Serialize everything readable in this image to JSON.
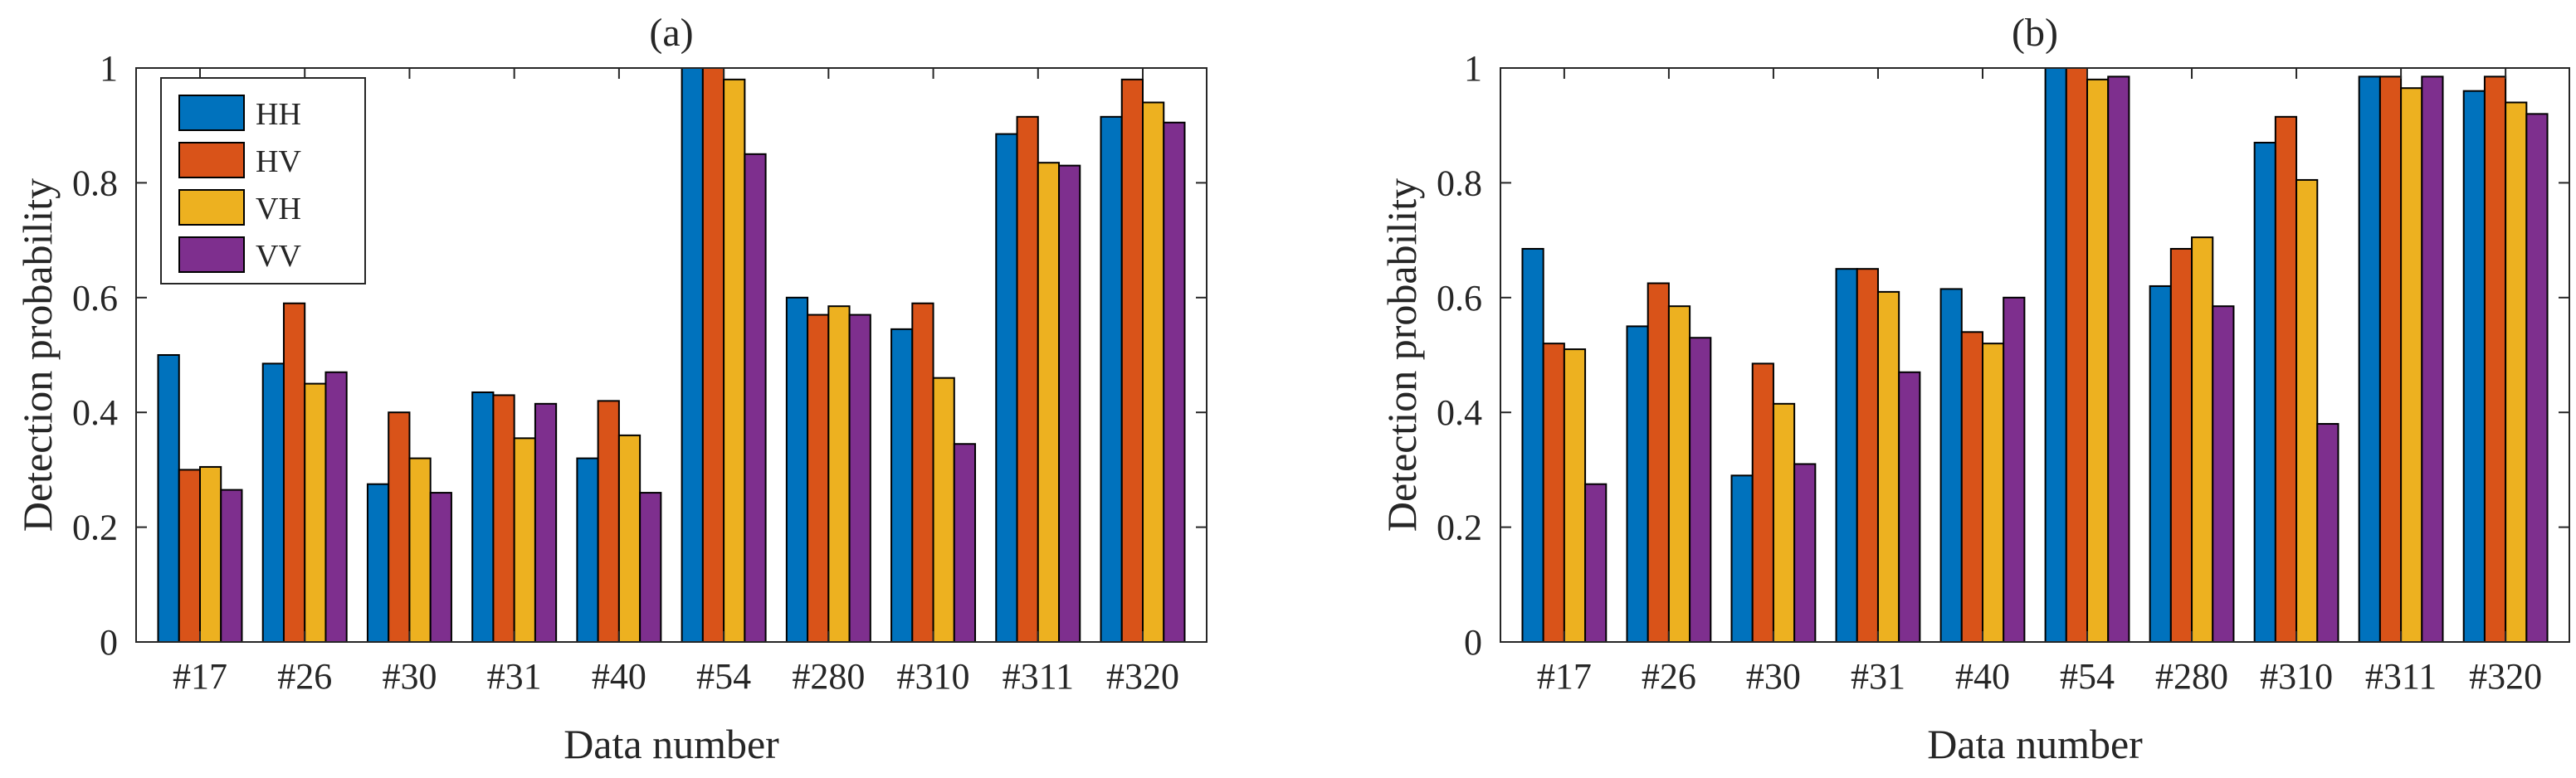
{
  "chart_data": [
    {
      "type": "bar",
      "title": "(a)",
      "xlabel": "Data number",
      "ylabel": "Detection probability",
      "ylim": [
        0,
        1
      ],
      "yticks": [
        0,
        0.2,
        0.4,
        0.6,
        0.8,
        1
      ],
      "ytick_labels": [
        "0",
        "0.2",
        "0.4",
        "0.6",
        "0.8",
        "1"
      ],
      "categories": [
        "#17",
        "#26",
        "#30",
        "#31",
        "#40",
        "#54",
        "#280",
        "#310",
        "#311",
        "#320"
      ],
      "legend": {
        "position": "top-left",
        "entries": [
          "HH",
          "HV",
          "VH",
          "VV"
        ]
      },
      "series": [
        {
          "name": "HH",
          "color": "#0072BD",
          "values": [
            0.5,
            0.485,
            0.275,
            0.435,
            0.32,
            1.0,
            0.6,
            0.545,
            0.885,
            0.915
          ]
        },
        {
          "name": "HV",
          "color": "#D95319",
          "values": [
            0.3,
            0.59,
            0.4,
            0.43,
            0.42,
            1.0,
            0.57,
            0.59,
            0.915,
            0.98
          ]
        },
        {
          "name": "VH",
          "color": "#EDB120",
          "values": [
            0.305,
            0.45,
            0.32,
            0.355,
            0.36,
            0.98,
            0.585,
            0.46,
            0.835,
            0.94
          ]
        },
        {
          "name": "VV",
          "color": "#7E2F8E",
          "values": [
            0.265,
            0.47,
            0.26,
            0.415,
            0.26,
            0.85,
            0.57,
            0.345,
            0.83,
            0.905
          ]
        }
      ]
    },
    {
      "type": "bar",
      "title": "(b)",
      "xlabel": "Data number",
      "ylabel": "Detection probability",
      "ylim": [
        0,
        1
      ],
      "yticks": [
        0,
        0.2,
        0.4,
        0.6,
        0.8,
        1
      ],
      "ytick_labels": [
        "0",
        "0.2",
        "0.4",
        "0.6",
        "0.8",
        "1"
      ],
      "categories": [
        "#17",
        "#26",
        "#30",
        "#31",
        "#40",
        "#54",
        "#280",
        "#310",
        "#311",
        "#320"
      ],
      "series": [
        {
          "name": "HH",
          "color": "#0072BD",
          "values": [
            0.685,
            0.55,
            0.29,
            0.65,
            0.615,
            1.0,
            0.62,
            0.87,
            0.985,
            0.96
          ]
        },
        {
          "name": "HV",
          "color": "#D95319",
          "values": [
            0.52,
            0.625,
            0.485,
            0.65,
            0.54,
            1.0,
            0.685,
            0.915,
            0.985,
            0.985
          ]
        },
        {
          "name": "VH",
          "color": "#EDB120",
          "values": [
            0.51,
            0.585,
            0.415,
            0.61,
            0.52,
            0.98,
            0.705,
            0.805,
            0.965,
            0.94
          ]
        },
        {
          "name": "VV",
          "color": "#7E2F8E",
          "values": [
            0.275,
            0.53,
            0.31,
            0.47,
            0.6,
            0.985,
            0.585,
            0.38,
            0.985,
            0.92
          ]
        }
      ]
    }
  ]
}
